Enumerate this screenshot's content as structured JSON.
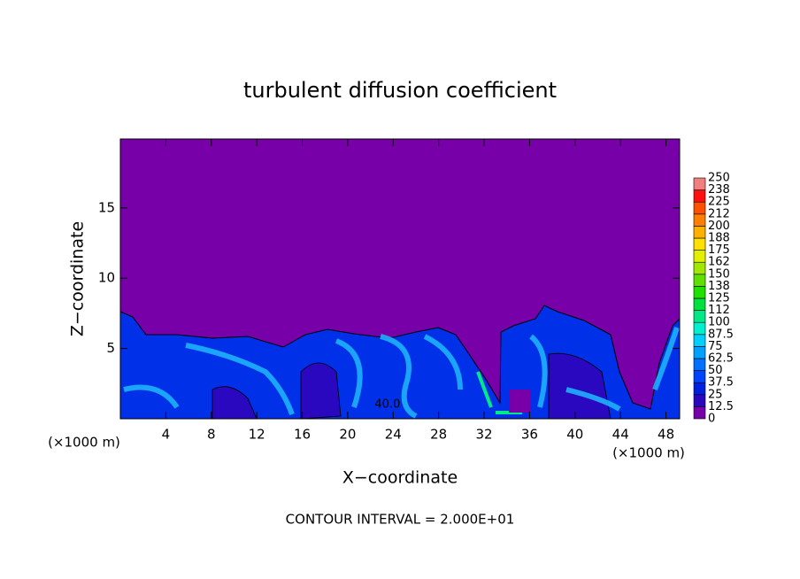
{
  "chart_data": {
    "type": "contour",
    "title": "turbulent diffusion coefficient",
    "xlabel": "X−coordinate",
    "ylabel": "Z−coordinate",
    "xunit": "(×1000 m)",
    "xlim": [
      0,
      49.2
    ],
    "ylim": [
      0,
      19.9
    ],
    "xticks": [
      4,
      8,
      12,
      16,
      20,
      24,
      28,
      32,
      36,
      40,
      44,
      48
    ],
    "yticks": [
      5,
      10,
      15
    ],
    "colorbar": {
      "levels": [
        0,
        12.5,
        25,
        37.5,
        50,
        62.5,
        75,
        87.5,
        100,
        {
          "value": 112.5,
          "label": "112"
        },
        125,
        {
          "value": 137.5,
          "label": "138"
        },
        150,
        {
          "value": 162.5,
          "label": "162"
        },
        175,
        {
          "value": 187.5,
          "label": "188"
        },
        200,
        {
          "value": 212.5,
          "label": "212"
        },
        225,
        {
          "value": 237.5,
          "label": "238"
        },
        250
      ],
      "colors": [
        "#7800a8",
        "#2a08c0",
        "#0020e0",
        "#0044ff",
        "#0070ff",
        "#00a0ff",
        "#00d0ff",
        "#00f0d0",
        "#00e888",
        "#00e040",
        "#20e000",
        "#60e000",
        "#a0e800",
        "#e0f000",
        "#ffe000",
        "#ffb000",
        "#ff8000",
        "#ff5000",
        "#ff1010",
        "#f08080"
      ]
    },
    "contour_labels": [
      {
        "value": 40,
        "label": "40.0",
        "x": 23.5,
        "z": 1.0
      }
    ],
    "footnote": "CONTOUR INTERVAL = 2.000E+01"
  }
}
